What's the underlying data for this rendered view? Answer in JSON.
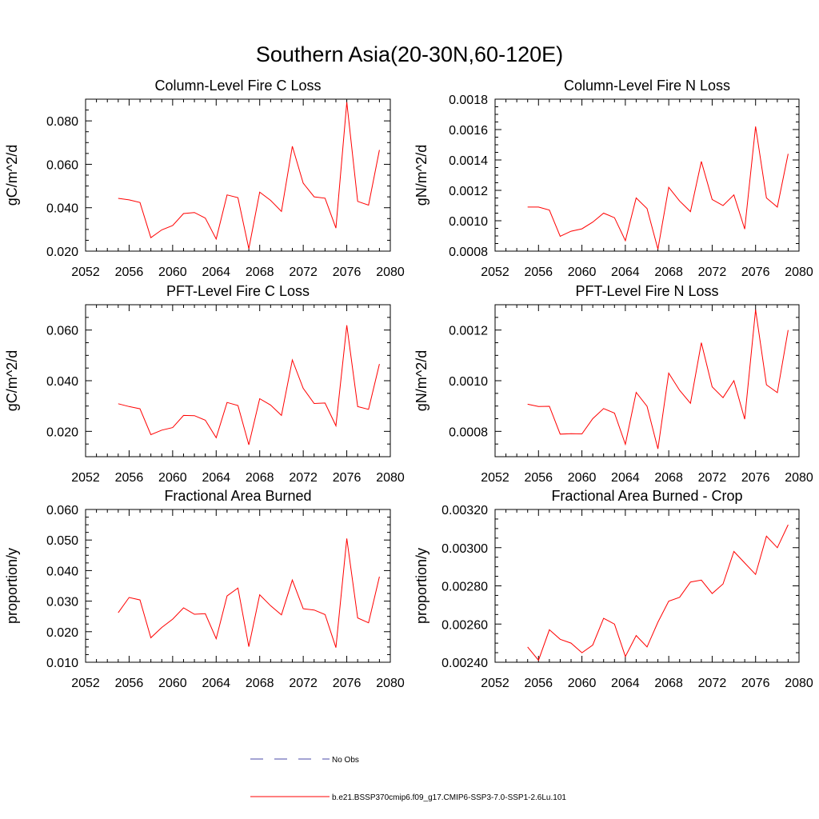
{
  "figure": {
    "title": "Southern Asia(20-30N,60-120E)"
  },
  "legend": {
    "entries": [
      {
        "label": "No Obs",
        "color": "#4a4aa8",
        "style": "dashed"
      },
      {
        "label": "b.e21.BSSP370cmip6.f09_g17.CMIP6-SSP3-7.0-SSP1-2.6Lu.101",
        "color": "#ff0000",
        "style": "solid"
      }
    ]
  },
  "chart_data": [
    {
      "type": "line",
      "title": "Column-Level Fire C Loss",
      "ylabel": "gC/m^2/d",
      "xlim": [
        2052,
        2080
      ],
      "ylim": [
        0.02,
        0.09
      ],
      "xticks": [
        "2052",
        "2056",
        "2060",
        "2064",
        "2068",
        "2072",
        "2076",
        "2080"
      ],
      "yticks": [
        "0.020",
        "0.040",
        "0.060",
        "0.080"
      ],
      "series": [
        {
          "color": "#ff0000",
          "x": [
            2055,
            2056,
            2057,
            2058,
            2059,
            2060,
            2061,
            2062,
            2063,
            2064,
            2065,
            2066,
            2067,
            2068,
            2069,
            2070,
            2071,
            2072,
            2073,
            2074,
            2075,
            2076,
            2077,
            2078,
            2079
          ],
          "y": [
            0.0443,
            0.0436,
            0.0424,
            0.0262,
            0.0298,
            0.0318,
            0.0373,
            0.0378,
            0.0352,
            0.0256,
            0.0459,
            0.0446,
            0.0211,
            0.0472,
            0.0434,
            0.0383,
            0.0683,
            0.0513,
            0.045,
            0.0444,
            0.0306,
            0.0886,
            0.0429,
            0.0412,
            0.0666
          ]
        }
      ]
    },
    {
      "type": "line",
      "title": "Column-Level Fire N Loss",
      "ylabel": "gN/m^2/d",
      "xlim": [
        2052,
        2080
      ],
      "ylim": [
        0.0008,
        0.0018
      ],
      "xticks": [
        "2052",
        "2056",
        "2060",
        "2064",
        "2068",
        "2072",
        "2076",
        "2080"
      ],
      "yticks": [
        "0.0008",
        "0.0010",
        "0.0012",
        "0.0014",
        "0.0016",
        "0.0018"
      ],
      "series": [
        {
          "color": "#ff0000",
          "x": [
            2055,
            2056,
            2057,
            2058,
            2059,
            2060,
            2061,
            2062,
            2063,
            2064,
            2065,
            2066,
            2067,
            2068,
            2069,
            2070,
            2071,
            2072,
            2073,
            2074,
            2075,
            2076,
            2077,
            2078,
            2079
          ],
          "y": [
            0.00109,
            0.00109,
            0.00107,
            0.000898,
            0.000931,
            0.000947,
            0.000991,
            0.00105,
            0.00102,
            0.000869,
            0.00115,
            0.00108,
            0.000813,
            0.00122,
            0.00113,
            0.00106,
            0.00139,
            0.00114,
            0.0011,
            0.00117,
            0.000945,
            0.00162,
            0.00115,
            0.00109,
            0.00144
          ]
        }
      ]
    },
    {
      "type": "line",
      "title": "PFT-Level Fire C Loss",
      "ylabel": "gC/m^2/d",
      "xlim": [
        2052,
        2080
      ],
      "ylim": [
        0.01,
        0.07
      ],
      "xticks": [
        "2052",
        "2056",
        "2060",
        "2064",
        "2068",
        "2072",
        "2076",
        "2080"
      ],
      "yticks": [
        "0.020",
        "0.040",
        "0.060"
      ],
      "series": [
        {
          "color": "#ff0000",
          "x": [
            2055,
            2056,
            2057,
            2058,
            2059,
            2060,
            2061,
            2062,
            2063,
            2064,
            2065,
            2066,
            2067,
            2068,
            2069,
            2070,
            2071,
            2072,
            2073,
            2074,
            2075,
            2076,
            2077,
            2078,
            2079
          ],
          "y": [
            0.0309,
            0.0298,
            0.0289,
            0.0187,
            0.0205,
            0.0215,
            0.0263,
            0.0262,
            0.0244,
            0.0175,
            0.0314,
            0.0302,
            0.0147,
            0.0329,
            0.0304,
            0.0263,
            0.0482,
            0.037,
            0.031,
            0.0312,
            0.0222,
            0.0619,
            0.0298,
            0.0287,
            0.0466
          ]
        }
      ]
    },
    {
      "type": "line",
      "title": "PFT-Level Fire N Loss",
      "ylabel": "gN/m^2/d",
      "xlim": [
        2052,
        2080
      ],
      "ylim": [
        0.0007,
        0.0013
      ],
      "xticks": [
        "2052",
        "2056",
        "2060",
        "2064",
        "2068",
        "2072",
        "2076",
        "2080"
      ],
      "yticks": [
        "0.0008",
        "0.0010",
        "0.0012"
      ],
      "series": [
        {
          "color": "#ff0000",
          "x": [
            2055,
            2056,
            2057,
            2058,
            2059,
            2060,
            2061,
            2062,
            2063,
            2064,
            2065,
            2066,
            2067,
            2068,
            2069,
            2070,
            2071,
            2072,
            2073,
            2074,
            2075,
            2076,
            2077,
            2078,
            2079
          ],
          "y": [
            0.000907,
            0.000898,
            0.000899,
            0.000789,
            0.000791,
            0.00079,
            0.00085,
            0.00089,
            0.000872,
            0.000749,
            0.000954,
            0.000899,
            0.000731,
            0.00103,
            0.000962,
            0.000911,
            0.00115,
            0.000976,
            0.000933,
            0.001,
            0.000848,
            0.00128,
            0.000984,
            0.000953,
            0.0012
          ]
        }
      ]
    },
    {
      "type": "line",
      "title": "Fractional Area Burned",
      "ylabel": "proportion/y",
      "xlim": [
        2052,
        2080
      ],
      "ylim": [
        0.01,
        0.06
      ],
      "xticks": [
        "2052",
        "2056",
        "2060",
        "2064",
        "2068",
        "2072",
        "2076",
        "2080"
      ],
      "yticks": [
        "0.010",
        "0.020",
        "0.030",
        "0.040",
        "0.050",
        "0.060"
      ],
      "series": [
        {
          "color": "#ff0000",
          "x": [
            2055,
            2056,
            2057,
            2058,
            2059,
            2060,
            2061,
            2062,
            2063,
            2064,
            2065,
            2066,
            2067,
            2068,
            2069,
            2070,
            2071,
            2072,
            2073,
            2074,
            2075,
            2076,
            2077,
            2078,
            2079
          ],
          "y": [
            0.0262,
            0.0312,
            0.0304,
            0.018,
            0.0214,
            0.0241,
            0.0278,
            0.0257,
            0.0259,
            0.0177,
            0.0317,
            0.0343,
            0.0151,
            0.0321,
            0.0285,
            0.0255,
            0.0369,
            0.0275,
            0.0271,
            0.0256,
            0.0148,
            0.0505,
            0.0245,
            0.0229,
            0.038
          ]
        }
      ]
    },
    {
      "type": "line",
      "title": "Fractional Area Burned - Crop",
      "ylabel": "proportion/y",
      "xlim": [
        2052,
        2080
      ],
      "ylim": [
        0.0024,
        0.0032
      ],
      "xticks": [
        "2052",
        "2056",
        "2060",
        "2064",
        "2068",
        "2072",
        "2076",
        "2080"
      ],
      "yticks": [
        "0.00240",
        "0.00260",
        "0.00280",
        "0.00300",
        "0.00320"
      ],
      "series": [
        {
          "color": "#ff0000",
          "x": [
            2055,
            2056,
            2057,
            2058,
            2059,
            2060,
            2061,
            2062,
            2063,
            2064,
            2065,
            2066,
            2067,
            2068,
            2069,
            2070,
            2071,
            2072,
            2073,
            2074,
            2075,
            2076,
            2077,
            2078,
            2079
          ],
          "y": [
            0.00248,
            0.00241,
            0.00257,
            0.00252,
            0.0025,
            0.00245,
            0.00249,
            0.00263,
            0.0026,
            0.00243,
            0.00254,
            0.00248,
            0.00261,
            0.00272,
            0.00274,
            0.00282,
            0.00283,
            0.00276,
            0.00281,
            0.00298,
            0.00292,
            0.00286,
            0.00306,
            0.003,
            0.00312
          ]
        }
      ]
    }
  ]
}
